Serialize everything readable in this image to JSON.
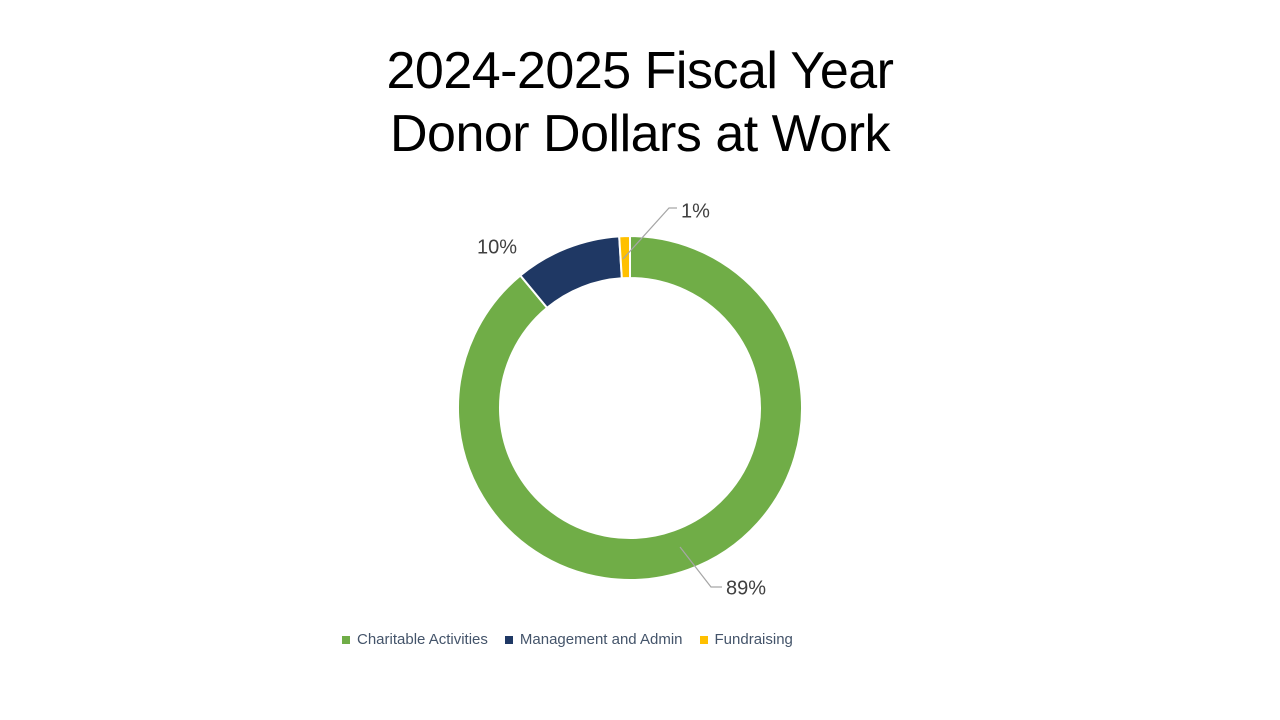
{
  "title": {
    "line1": "2024-2025 Fiscal Year",
    "line2": "Donor Dollars at Work"
  },
  "chart_data": {
    "type": "pie",
    "subtype": "donut",
    "title": "2024-2025 Fiscal Year Donor Dollars at Work",
    "categories": [
      "Charitable Activities",
      "Management and Admin",
      "Fundraising"
    ],
    "values": [
      89,
      10,
      1
    ],
    "unit": "%",
    "labels": [
      "89%",
      "10%",
      "1%"
    ],
    "colors": [
      "#70AD47",
      "#1F3864",
      "#FFC000"
    ],
    "legend_position": "bottom",
    "start_angle_deg": 0,
    "direction": "clockwise",
    "hole_ratio": 0.755,
    "grid": false
  },
  "styles": {
    "background": "#FFFFFF",
    "title_color": "#000000",
    "data_label_color": "#404040",
    "legend_text_color": "#44546A",
    "leader_line_color": "#A6A6A6",
    "slice_border_color": "#FFFFFF"
  }
}
